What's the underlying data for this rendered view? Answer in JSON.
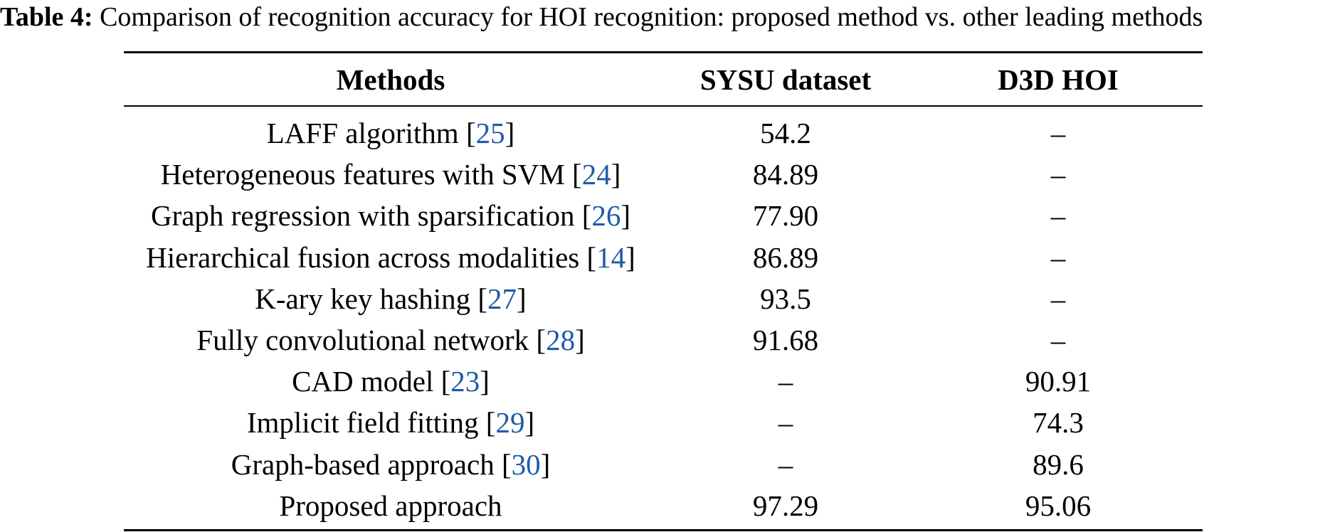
{
  "caption": {
    "label": "Table 4:",
    "text": "Comparison of recognition accuracy for HOI recognition: proposed method vs. other leading methods"
  },
  "table": {
    "headers": [
      "Methods",
      "SYSU dataset",
      "D3D HOI"
    ],
    "rows": [
      {
        "method": "LAFF algorithm",
        "ref": "25",
        "sysu": "54.2",
        "d3d": "–"
      },
      {
        "method": "Heterogeneous features with SVM",
        "ref": "24",
        "sysu": "84.89",
        "d3d": "–"
      },
      {
        "method": "Graph regression with sparsification",
        "ref": "26",
        "sysu": "77.90",
        "d3d": "–"
      },
      {
        "method": "Hierarchical fusion across modalities",
        "ref": "14",
        "sysu": "86.89",
        "d3d": "–"
      },
      {
        "method": "K-ary key hashing",
        "ref": "27",
        "sysu": "93.5",
        "d3d": "–"
      },
      {
        "method": "Fully convolutional network",
        "ref": "28",
        "sysu": "91.68",
        "d3d": "–"
      },
      {
        "method": "CAD model",
        "ref": "23",
        "sysu": "–",
        "d3d": "90.91"
      },
      {
        "method": "Implicit field fitting",
        "ref": "29",
        "sysu": "–",
        "d3d": "74.3"
      },
      {
        "method": "Graph-based approach",
        "ref": "30",
        "sysu": "–",
        "d3d": "89.6"
      },
      {
        "method": "Proposed approach",
        "ref": "",
        "sysu": "97.29",
        "d3d": "95.06"
      }
    ]
  },
  "colors": {
    "citation": "#1f5aa8"
  }
}
